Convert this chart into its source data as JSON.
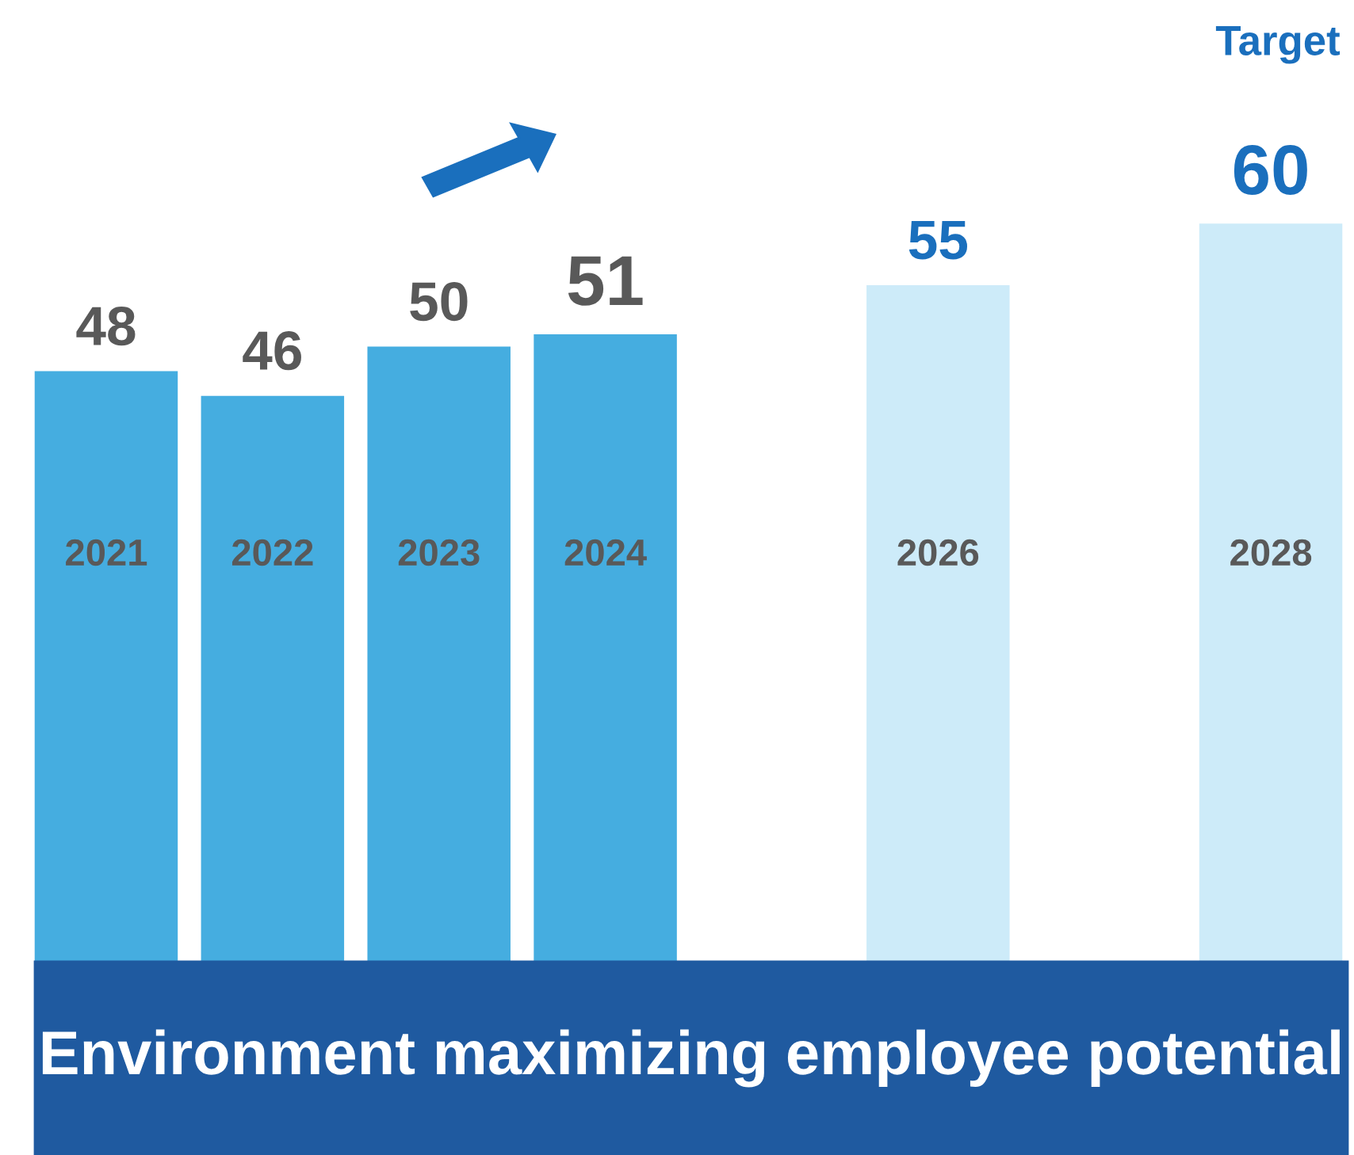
{
  "chart_data": {
    "type": "bar",
    "xlabel": "Environment maximizing employee potential",
    "categories": [
      "2021",
      "2022",
      "2023",
      "2024",
      null,
      "2026",
      null,
      "2028"
    ],
    "series": [
      {
        "color": "#45ade0",
        "values": [
          48,
          46,
          50,
          51,
          null,
          null,
          null,
          null
        ]
      },
      {
        "color": "#cdebf9",
        "values": [
          null,
          null,
          null,
          null,
          null,
          55,
          null,
          60
        ]
      }
    ],
    "data_labels": true,
    "legend": false,
    "annotations": [
      "Target"
    ]
  }
}
